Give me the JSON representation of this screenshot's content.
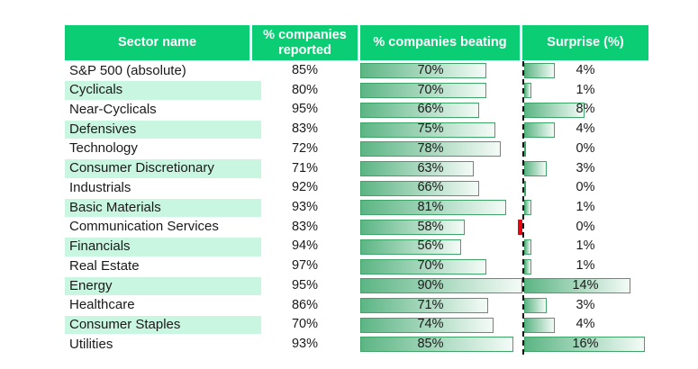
{
  "header": {
    "columns": [
      {
        "label": "Sector name"
      },
      {
        "label": "% companies reported"
      },
      {
        "label": "%  companies beating"
      },
      {
        "label": "Surprise (%)"
      }
    ]
  },
  "rows": [
    {
      "sector": "S&P 500 (absolute)",
      "reported": "85%",
      "beating": 70,
      "beating_label": "70%",
      "surprise": 4,
      "surprise_label": "4%",
      "highlight": false,
      "surprise_negative": false
    },
    {
      "sector": "Cyclicals",
      "reported": "80%",
      "beating": 70,
      "beating_label": "70%",
      "surprise": 1,
      "surprise_label": "1%",
      "highlight": true,
      "surprise_negative": false
    },
    {
      "sector": "Near-Cyclicals",
      "reported": "95%",
      "beating": 66,
      "beating_label": "66%",
      "surprise": 8,
      "surprise_label": "8%",
      "highlight": false,
      "surprise_negative": false
    },
    {
      "sector": "Defensives",
      "reported": "83%",
      "beating": 75,
      "beating_label": "75%",
      "surprise": 4,
      "surprise_label": "4%",
      "highlight": true,
      "surprise_negative": false
    },
    {
      "sector": "Technology",
      "reported": "72%",
      "beating": 78,
      "beating_label": "78%",
      "surprise": 0,
      "surprise_label": "0%",
      "highlight": false,
      "surprise_negative": false
    },
    {
      "sector": "Consumer Discretionary",
      "reported": "71%",
      "beating": 63,
      "beating_label": "63%",
      "surprise": 3,
      "surprise_label": "3%",
      "highlight": true,
      "surprise_negative": false
    },
    {
      "sector": "Industrials",
      "reported": "92%",
      "beating": 66,
      "beating_label": "66%",
      "surprise": 0,
      "surprise_label": "0%",
      "highlight": false,
      "surprise_negative": false
    },
    {
      "sector": "Basic Materials",
      "reported": "93%",
      "beating": 81,
      "beating_label": "81%",
      "surprise": 1,
      "surprise_label": "1%",
      "highlight": true,
      "surprise_negative": false
    },
    {
      "sector": "Communication Services",
      "reported": "83%",
      "beating": 58,
      "beating_label": "58%",
      "surprise": 0,
      "surprise_label": "0%",
      "highlight": false,
      "surprise_negative": true
    },
    {
      "sector": "Financials",
      "reported": "94%",
      "beating": 56,
      "beating_label": "56%",
      "surprise": 1,
      "surprise_label": "1%",
      "highlight": true,
      "surprise_negative": false
    },
    {
      "sector": "Real Estate",
      "reported": "97%",
      "beating": 70,
      "beating_label": "70%",
      "surprise": 1,
      "surprise_label": "1%",
      "highlight": false,
      "surprise_negative": false
    },
    {
      "sector": "Energy",
      "reported": "95%",
      "beating": 90,
      "beating_label": "90%",
      "surprise": 14,
      "surprise_label": "14%",
      "highlight": true,
      "surprise_negative": false
    },
    {
      "sector": "Healthcare",
      "reported": "86%",
      "beating": 71,
      "beating_label": "71%",
      "surprise": 3,
      "surprise_label": "3%",
      "highlight": false,
      "surprise_negative": false
    },
    {
      "sector": "Consumer Staples",
      "reported": "70%",
      "beating": 74,
      "beating_label": "74%",
      "surprise": 4,
      "surprise_label": "4%",
      "highlight": true,
      "surprise_negative": false
    },
    {
      "sector": "Utilities",
      "reported": "93%",
      "beating": 85,
      "beating_label": "85%",
      "surprise": 16,
      "surprise_label": "16%",
      "highlight": false,
      "surprise_negative": false
    }
  ],
  "colors": {
    "header_bg": "#0bce74",
    "header_text": "#ffffff",
    "row_highlight": "#c9f6e0",
    "bar_border": "#3fa468",
    "bar_gradient_start": "#5cb584",
    "bar_gradient_end": "#f4fbf7",
    "negative_bar": "#e30613",
    "baseline": "#111111",
    "text": "#1a1a1a",
    "background": "#ffffff"
  },
  "chart_data": {
    "type": "table",
    "title": "",
    "categories": [
      "S&P 500 (absolute)",
      "Cyclicals",
      "Near-Cyclicals",
      "Defensives",
      "Technology",
      "Consumer Discretionary",
      "Industrials",
      "Basic Materials",
      "Communication Services",
      "Financials",
      "Real Estate",
      "Energy",
      "Healthcare",
      "Consumer Staples",
      "Utilities"
    ],
    "series": [
      {
        "name": "% companies reported",
        "values": [
          85,
          80,
          95,
          83,
          72,
          71,
          92,
          93,
          83,
          94,
          97,
          95,
          86,
          70,
          93
        ]
      },
      {
        "name": "% companies beating",
        "values": [
          70,
          70,
          66,
          75,
          78,
          63,
          66,
          81,
          58,
          56,
          70,
          90,
          71,
          74,
          85
        ]
      },
      {
        "name": "Surprise (%)",
        "values": [
          4,
          1,
          8,
          4,
          0,
          3,
          0,
          1,
          0,
          1,
          1,
          14,
          3,
          4,
          16
        ]
      }
    ],
    "notes": "Beating and Surprise columns rendered as in-cell gradient bars; Surprise bars grow right from a dashed zero baseline; Communication Services surprise is slightly negative (small red bar, label 0%).",
    "legend_position": "none",
    "grid": false
  }
}
